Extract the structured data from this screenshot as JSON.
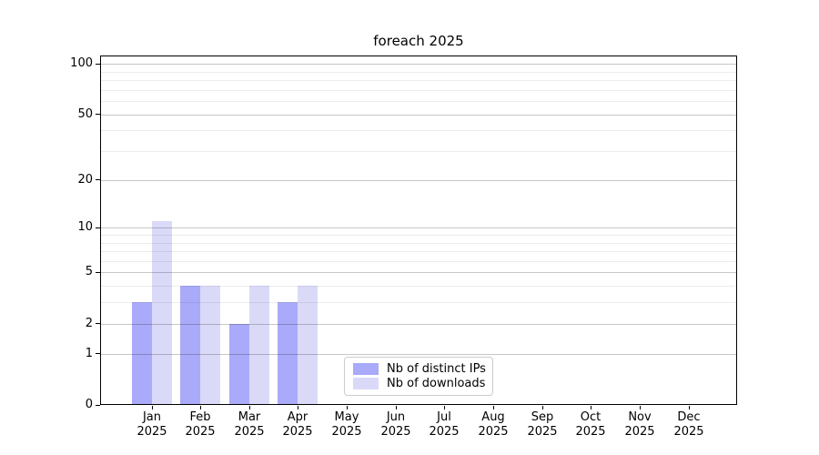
{
  "chart_data": {
    "type": "bar",
    "title": "foreach 2025",
    "categories": [
      "Jan",
      "Feb",
      "Mar",
      "Apr",
      "May",
      "Jun",
      "Jul",
      "Aug",
      "Sep",
      "Oct",
      "Nov",
      "Dec"
    ],
    "year": "2025",
    "series": [
      {
        "name": "Nb of distinct IPs",
        "color": "#aaaafa",
        "values": [
          3,
          4,
          2,
          3,
          0,
          0,
          0,
          0,
          0,
          0,
          0,
          0
        ]
      },
      {
        "name": "Nb of downloads",
        "color": "#dadaf8",
        "values": [
          11,
          4,
          4,
          4,
          0,
          0,
          0,
          0,
          0,
          0,
          0,
          0
        ]
      }
    ],
    "xlabel": "",
    "ylabel": "",
    "yscale": "log10(1+x)",
    "ylim": [
      0,
      110
    ],
    "ytick_values": [
      0,
      1,
      2,
      5,
      10,
      20,
      50,
      100
    ],
    "ytick_labels": [
      "0",
      "1",
      "2",
      "5",
      "10",
      "20",
      "50",
      "100"
    ],
    "minor_grid_values": [
      3,
      4,
      6,
      7,
      8,
      9,
      30,
      40,
      60,
      70,
      80,
      90
    ],
    "grid": "on",
    "legend_position": "inside lower center-left"
  }
}
